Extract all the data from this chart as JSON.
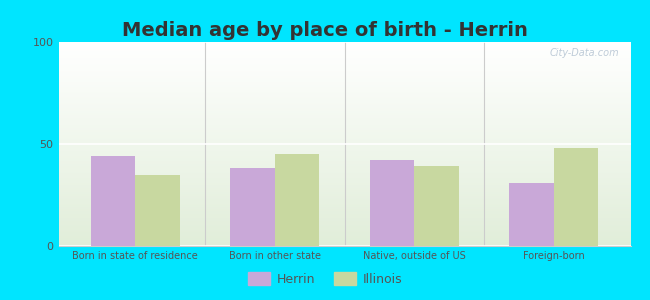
{
  "title": "Median age by place of birth - Herrin",
  "categories": [
    "Born in state of residence",
    "Born in other state",
    "Native, outside of US",
    "Foreign-born"
  ],
  "herrin_values": [
    44,
    38,
    42,
    31
  ],
  "illinois_values": [
    35,
    45,
    39,
    48
  ],
  "herrin_color": "#c9a8d8",
  "illinois_color": "#c8d8a0",
  "ylim": [
    0,
    100
  ],
  "yticks": [
    0,
    50,
    100
  ],
  "background_color": "#00e5ff",
  "bar_width": 0.32,
  "legend_herrin": "Herrin",
  "legend_illinois": "Illinois",
  "watermark": "City-Data.com",
  "title_fontsize": 14,
  "title_color": "#333333"
}
